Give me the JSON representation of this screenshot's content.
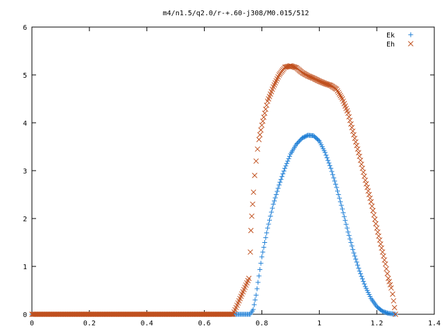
{
  "chart_data": {
    "type": "scatter",
    "title": "m4/n1.5/q2.0/r-+.60-j308/M0.015/512",
    "xlabel": "",
    "ylabel": "",
    "xlim": [
      0,
      1.4
    ],
    "ylim": [
      0,
      6
    ],
    "x_ticks": [
      0,
      0.2,
      0.4,
      0.6,
      0.8,
      1,
      1.2,
      1.4
    ],
    "x_tick_labels": [
      "0",
      "0.2",
      "0.4",
      "0.6",
      "0.8",
      "1",
      "1.2",
      "1.4"
    ],
    "y_ticks": [
      0,
      1,
      2,
      3,
      4,
      5,
      6
    ],
    "y_tick_labels": [
      "0",
      "1",
      "2",
      "3",
      "4",
      "5",
      "6"
    ],
    "grid": false,
    "legend_position": "top-right",
    "series": [
      {
        "name": "Ek",
        "marker": "plus",
        "color": "#1f7fd6",
        "points": [
          [
            0.0,
            0.0
          ],
          [
            0.1,
            0.0
          ],
          [
            0.2,
            0.0
          ],
          [
            0.3,
            0.0
          ],
          [
            0.4,
            0.0
          ],
          [
            0.5,
            0.0
          ],
          [
            0.6,
            0.0
          ],
          [
            0.7,
            0.0
          ],
          [
            0.76,
            0.0
          ],
          [
            0.77,
            0.1
          ],
          [
            0.78,
            0.4
          ],
          [
            0.79,
            0.8
          ],
          [
            0.8,
            1.2
          ],
          [
            0.82,
            1.8
          ],
          [
            0.84,
            2.3
          ],
          [
            0.86,
            2.7
          ],
          [
            0.88,
            3.05
          ],
          [
            0.9,
            3.35
          ],
          [
            0.92,
            3.55
          ],
          [
            0.94,
            3.68
          ],
          [
            0.96,
            3.74
          ],
          [
            0.98,
            3.73
          ],
          [
            1.0,
            3.62
          ],
          [
            1.02,
            3.38
          ],
          [
            1.04,
            3.05
          ],
          [
            1.06,
            2.65
          ],
          [
            1.08,
            2.2
          ],
          [
            1.1,
            1.72
          ],
          [
            1.12,
            1.28
          ],
          [
            1.14,
            0.9
          ],
          [
            1.16,
            0.58
          ],
          [
            1.18,
            0.33
          ],
          [
            1.2,
            0.16
          ],
          [
            1.22,
            0.06
          ],
          [
            1.24,
            0.02
          ],
          [
            1.265,
            0.0
          ]
        ]
      },
      {
        "name": "Eh",
        "marker": "cross",
        "color": "#c0501e",
        "points": [
          [
            0.0,
            0.0
          ],
          [
            0.1,
            0.0
          ],
          [
            0.2,
            0.0
          ],
          [
            0.3,
            0.0
          ],
          [
            0.4,
            0.0
          ],
          [
            0.5,
            0.0
          ],
          [
            0.6,
            0.0
          ],
          [
            0.7,
            0.0
          ],
          [
            0.755,
            0.75
          ],
          [
            0.76,
            1.3
          ],
          [
            0.762,
            1.75
          ],
          [
            0.765,
            2.05
          ],
          [
            0.768,
            2.3
          ],
          [
            0.771,
            2.55
          ],
          [
            0.775,
            2.9
          ],
          [
            0.78,
            3.2
          ],
          [
            0.785,
            3.45
          ],
          [
            0.79,
            3.65
          ],
          [
            0.8,
            3.95
          ],
          [
            0.81,
            4.2
          ],
          [
            0.82,
            4.45
          ],
          [
            0.84,
            4.75
          ],
          [
            0.86,
            5.0
          ],
          [
            0.88,
            5.16
          ],
          [
            0.9,
            5.19
          ],
          [
            0.92,
            5.15
          ],
          [
            0.94,
            5.05
          ],
          [
            0.96,
            4.98
          ],
          [
            0.98,
            4.93
          ],
          [
            1.0,
            4.87
          ],
          [
            1.02,
            4.82
          ],
          [
            1.04,
            4.78
          ],
          [
            1.06,
            4.7
          ],
          [
            1.08,
            4.5
          ],
          [
            1.1,
            4.2
          ],
          [
            1.12,
            3.75
          ],
          [
            1.14,
            3.3
          ],
          [
            1.16,
            2.8
          ],
          [
            1.18,
            2.35
          ],
          [
            1.2,
            1.8
          ],
          [
            1.22,
            1.3
          ],
          [
            1.23,
            1.05
          ],
          [
            1.24,
            0.75
          ],
          [
            1.25,
            0.55
          ],
          [
            1.255,
            0.42
          ],
          [
            1.265,
            0.0
          ]
        ]
      }
    ]
  }
}
